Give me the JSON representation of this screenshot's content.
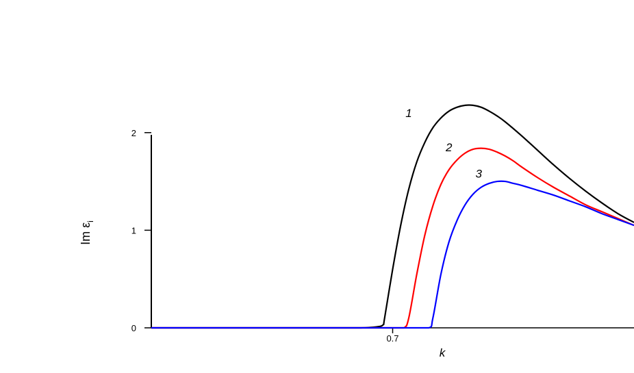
{
  "chart_data": {
    "type": "line",
    "title": "",
    "xlabel": "k",
    "ylabel": "Im ε",
    "ylabel_subscript": "i",
    "xlim": [
      0.4,
      1.0
    ],
    "ylim": [
      0,
      2.3
    ],
    "x_ticks": [
      {
        "value": 0.7,
        "label": "0.7"
      }
    ],
    "y_ticks": [
      {
        "value": 0,
        "label": "0"
      },
      {
        "value": 1,
        "label": "1"
      },
      {
        "value": 2,
        "label": "2"
      }
    ],
    "grid": false,
    "legend": "none",
    "series": [
      {
        "name": "1",
        "color": "#000000",
        "x": [
          0.4,
          0.55,
          0.62,
          0.66,
          0.68,
          0.688,
          0.69,
          0.7,
          0.71,
          0.72,
          0.73,
          0.74,
          0.75,
          0.76,
          0.77,
          0.78,
          0.79,
          0.8,
          0.81,
          0.82,
          0.83,
          0.84,
          0.86,
          0.88,
          0.9,
          0.92,
          0.94,
          0.96,
          0.98,
          1.0
        ],
        "y": [
          0.0,
          0.0,
          0.0,
          0.0,
          0.01,
          0.03,
          0.1,
          0.6,
          1.05,
          1.42,
          1.7,
          1.9,
          2.05,
          2.15,
          2.22,
          2.26,
          2.28,
          2.28,
          2.26,
          2.22,
          2.17,
          2.11,
          1.97,
          1.82,
          1.67,
          1.53,
          1.4,
          1.28,
          1.17,
          1.08
        ]
      },
      {
        "name": "2",
        "color": "#ff0000",
        "x": [
          0.4,
          0.55,
          0.65,
          0.7,
          0.714,
          0.72,
          0.73,
          0.74,
          0.75,
          0.76,
          0.77,
          0.78,
          0.79,
          0.8,
          0.81,
          0.82,
          0.83,
          0.84,
          0.85,
          0.86,
          0.88,
          0.9,
          0.92,
          0.94,
          0.96,
          0.98,
          1.0
        ],
        "y": [
          0.0,
          0.0,
          0.0,
          0.0,
          0.0,
          0.1,
          0.55,
          0.95,
          1.25,
          1.47,
          1.62,
          1.72,
          1.79,
          1.83,
          1.84,
          1.83,
          1.8,
          1.76,
          1.71,
          1.65,
          1.54,
          1.44,
          1.35,
          1.26,
          1.19,
          1.12,
          1.05
        ]
      },
      {
        "name": "3",
        "color": "#0000ff",
        "x": [
          0.4,
          0.55,
          0.65,
          0.72,
          0.745,
          0.75,
          0.76,
          0.77,
          0.78,
          0.79,
          0.8,
          0.81,
          0.82,
          0.83,
          0.84,
          0.85,
          0.86,
          0.88,
          0.9,
          0.92,
          0.94,
          0.96,
          0.98,
          1.0
        ],
        "y": [
          0.0,
          0.0,
          0.0,
          0.0,
          0.0,
          0.1,
          0.55,
          0.88,
          1.1,
          1.26,
          1.37,
          1.44,
          1.48,
          1.5,
          1.5,
          1.48,
          1.46,
          1.41,
          1.36,
          1.3,
          1.24,
          1.17,
          1.11,
          1.05
        ]
      }
    ],
    "curve_labels": [
      {
        "text": "1",
        "x": 0.72,
        "y": 2.16
      },
      {
        "text": "2",
        "x": 0.77,
        "y": 1.81
      },
      {
        "text": "3",
        "x": 0.807,
        "y": 1.54
      }
    ]
  }
}
